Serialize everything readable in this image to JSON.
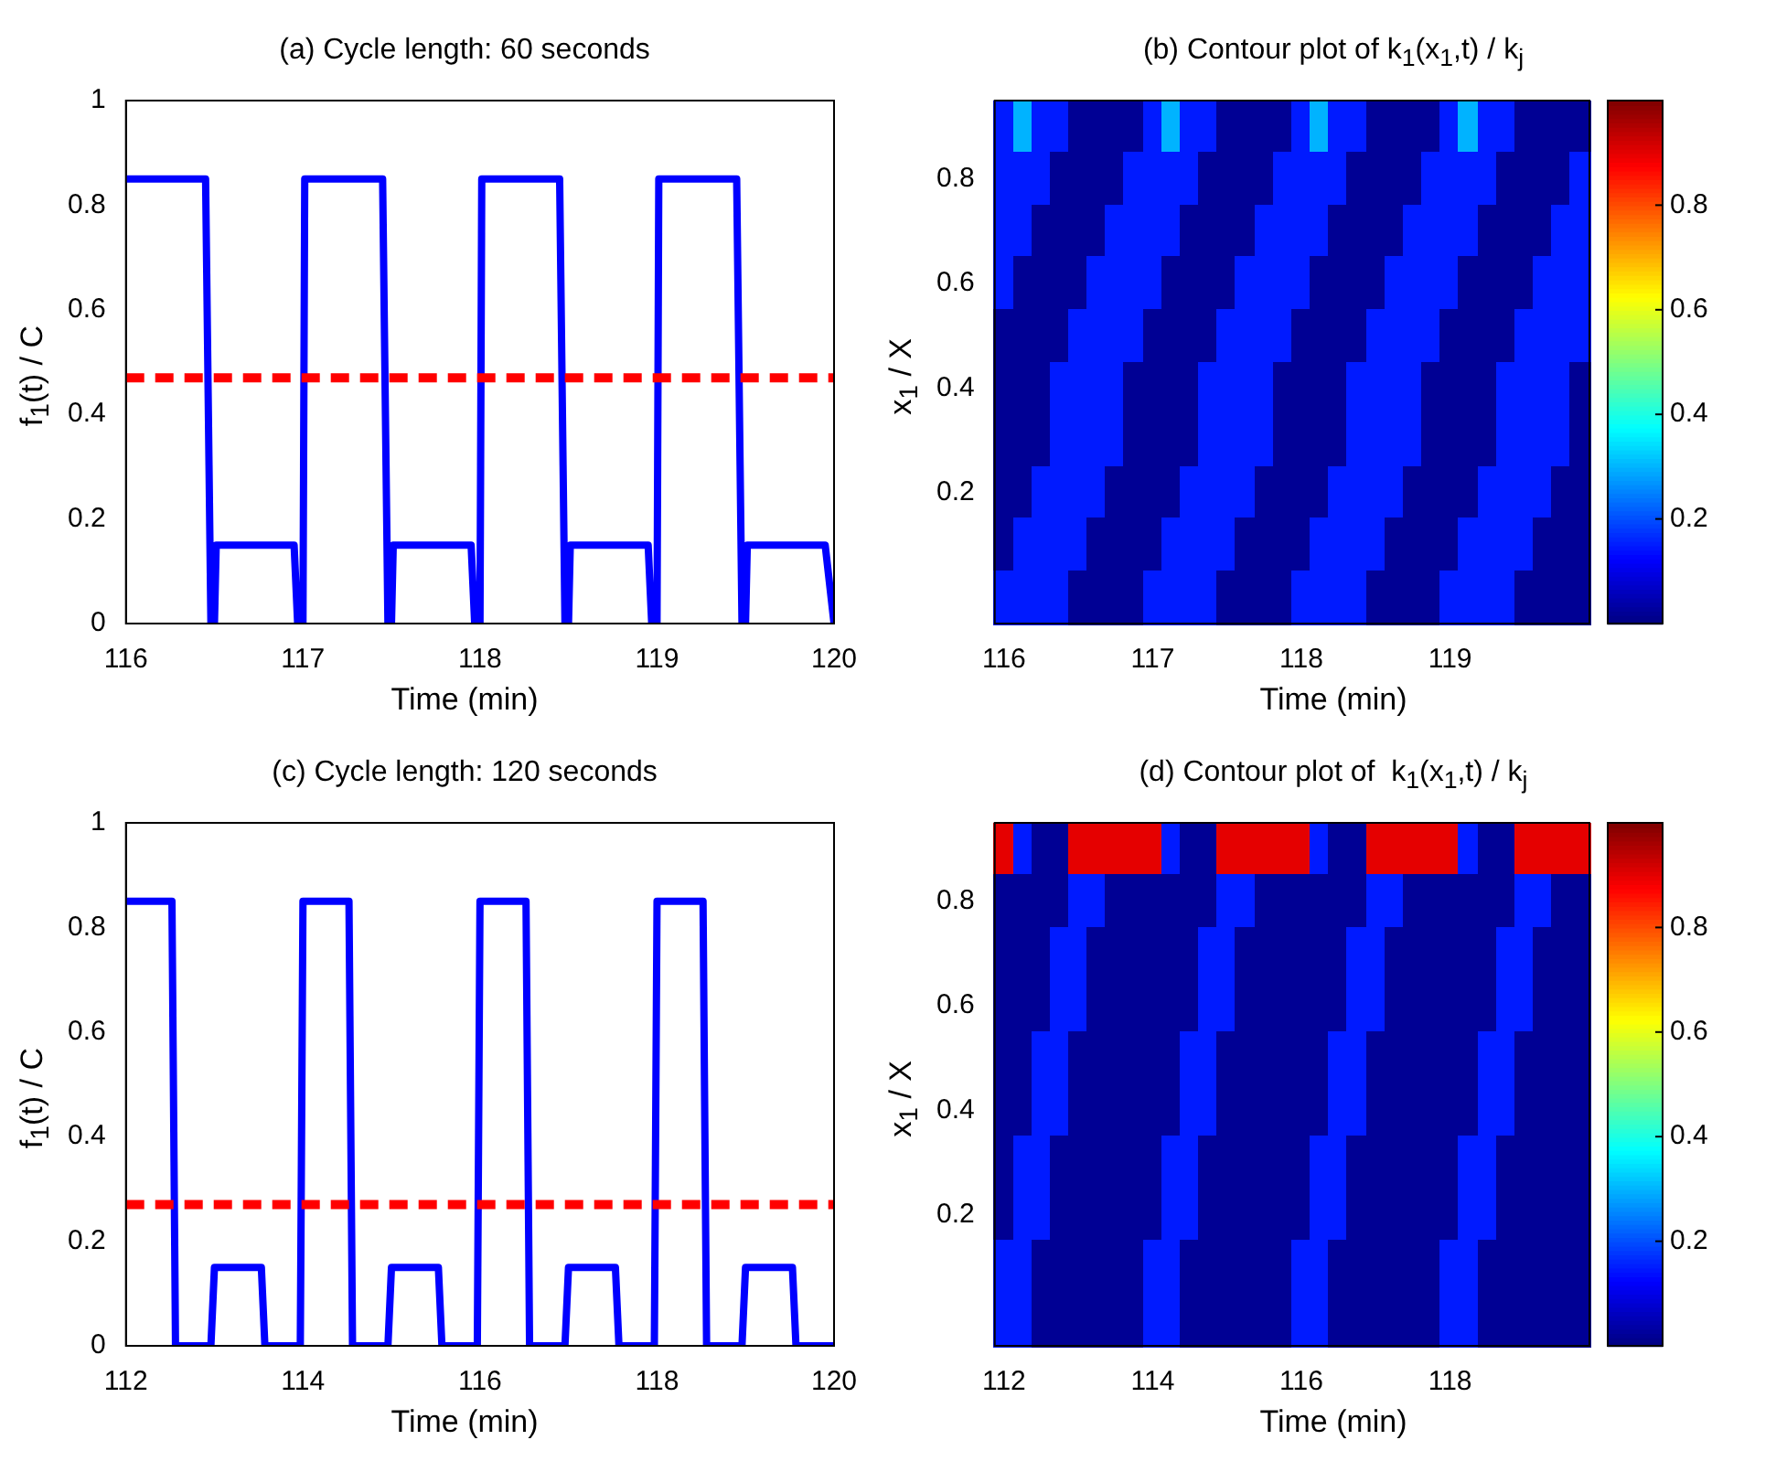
{
  "chart_data": [
    {
      "type": "line",
      "title": "(a) Cycle length: 60 seconds",
      "xlabel": "Time (min)",
      "ylabel": "f$_{1}$(t) / C",
      "color": "#0000ff",
      "line_style": "solid",
      "x": [
        116,
        116.45,
        116.48,
        116.5,
        116.51,
        116.95,
        116.97,
        117.0,
        117.01,
        117.45,
        117.48,
        117.5,
        117.51,
        117.95,
        117.97,
        118.0,
        118.01,
        118.45,
        118.48,
        118.5,
        118.51,
        118.95,
        118.97,
        119.0,
        119.01,
        119.45,
        119.48,
        119.5,
        119.51,
        119.95,
        120
      ],
      "values": [
        0.85,
        0.85,
        0,
        0,
        0.15,
        0.15,
        0,
        0,
        0.85,
        0.85,
        0,
        0,
        0.15,
        0.15,
        0,
        0,
        0.85,
        0.85,
        0,
        0,
        0.15,
        0.15,
        0,
        0,
        0.85,
        0.85,
        0,
        0,
        0.15,
        0.15,
        0
      ],
      "xlim": [
        116,
        120
      ],
      "xticks": [
        116,
        117,
        118,
        119,
        120
      ],
      "ylim": [
        0,
        1
      ],
      "yticks": [
        0,
        0.2,
        0.4,
        0.6,
        0.8,
        1
      ],
      "ref_lines": [
        {
          "axis": "y",
          "value": 0.47,
          "color": "#ff0000",
          "line_style": "dashed"
        }
      ]
    },
    {
      "type": "heatmap",
      "title": "(b) Contour plot of k$_{1}$(x$_{1}$,t) / k$_{j}$",
      "xlabel": "Time (min)",
      "ylabel": "x$_{1}$ / X",
      "categories": [
        "116",
        null,
        null,
        null,
        null,
        null,
        null,
        null,
        "117",
        null,
        null,
        null,
        null,
        null,
        null,
        null,
        "118",
        null,
        null,
        null,
        null,
        null,
        null,
        null,
        "119",
        null,
        null,
        null,
        null,
        null,
        null,
        null
      ],
      "y_categories": [
        null,
        "0.8",
        null,
        "0.6",
        null,
        "0.4",
        null,
        "0.2",
        null,
        null
      ],
      "cells": [
        [
          0.15,
          0.3,
          0.15,
          0.15,
          0.02,
          0.02,
          0.02,
          0.02,
          0.15,
          0.3,
          0.15,
          0.15,
          0.02,
          0.02,
          0.02,
          0.02,
          0.15,
          0.3,
          0.15,
          0.15,
          0.02,
          0.02,
          0.02,
          0.02,
          0.15,
          0.3,
          0.15,
          0.15,
          0.02,
          0.02,
          0.02,
          0.02
        ],
        [
          0.15,
          0.15,
          0.15,
          0.02,
          0.02,
          0.02,
          0.02,
          0.15,
          0.15,
          0.15,
          0.15,
          0.02,
          0.02,
          0.02,
          0.02,
          0.15,
          0.15,
          0.15,
          0.15,
          0.02,
          0.02,
          0.02,
          0.02,
          0.15,
          0.15,
          0.15,
          0.15,
          0.02,
          0.02,
          0.02,
          0.02,
          0.15
        ],
        [
          0.15,
          0.15,
          0.02,
          0.02,
          0.02,
          0.02,
          0.15,
          0.15,
          0.15,
          0.15,
          0.02,
          0.02,
          0.02,
          0.02,
          0.15,
          0.15,
          0.15,
          0.15,
          0.02,
          0.02,
          0.02,
          0.02,
          0.15,
          0.15,
          0.15,
          0.15,
          0.02,
          0.02,
          0.02,
          0.02,
          0.15,
          0.15
        ],
        [
          0.15,
          0.02,
          0.02,
          0.02,
          0.02,
          0.15,
          0.15,
          0.15,
          0.15,
          0.02,
          0.02,
          0.02,
          0.02,
          0.15,
          0.15,
          0.15,
          0.15,
          0.02,
          0.02,
          0.02,
          0.02,
          0.15,
          0.15,
          0.15,
          0.15,
          0.02,
          0.02,
          0.02,
          0.02,
          0.15,
          0.15,
          0.15
        ],
        [
          0.02,
          0.02,
          0.02,
          0.02,
          0.15,
          0.15,
          0.15,
          0.15,
          0.02,
          0.02,
          0.02,
          0.02,
          0.15,
          0.15,
          0.15,
          0.15,
          0.02,
          0.02,
          0.02,
          0.02,
          0.15,
          0.15,
          0.15,
          0.15,
          0.02,
          0.02,
          0.02,
          0.02,
          0.15,
          0.15,
          0.15,
          0.15
        ],
        [
          0.02,
          0.02,
          0.02,
          0.15,
          0.15,
          0.15,
          0.15,
          0.02,
          0.02,
          0.02,
          0.02,
          0.15,
          0.15,
          0.15,
          0.15,
          0.02,
          0.02,
          0.02,
          0.02,
          0.15,
          0.15,
          0.15,
          0.15,
          0.02,
          0.02,
          0.02,
          0.02,
          0.15,
          0.15,
          0.15,
          0.15,
          0.02
        ],
        [
          0.02,
          0.02,
          0.02,
          0.15,
          0.15,
          0.15,
          0.15,
          0.02,
          0.02,
          0.02,
          0.02,
          0.15,
          0.15,
          0.15,
          0.15,
          0.02,
          0.02,
          0.02,
          0.02,
          0.15,
          0.15,
          0.15,
          0.15,
          0.02,
          0.02,
          0.02,
          0.02,
          0.15,
          0.15,
          0.15,
          0.15,
          0.02
        ],
        [
          0.02,
          0.02,
          0.15,
          0.15,
          0.15,
          0.15,
          0.02,
          0.02,
          0.02,
          0.02,
          0.15,
          0.15,
          0.15,
          0.15,
          0.02,
          0.02,
          0.02,
          0.02,
          0.15,
          0.15,
          0.15,
          0.15,
          0.02,
          0.02,
          0.02,
          0.02,
          0.15,
          0.15,
          0.15,
          0.15,
          0.02,
          0.02
        ],
        [
          0.02,
          0.15,
          0.15,
          0.15,
          0.15,
          0.02,
          0.02,
          0.02,
          0.02,
          0.15,
          0.15,
          0.15,
          0.15,
          0.02,
          0.02,
          0.02,
          0.02,
          0.15,
          0.15,
          0.15,
          0.15,
          0.02,
          0.02,
          0.02,
          0.02,
          0.15,
          0.15,
          0.15,
          0.15,
          0.02,
          0.02,
          0.02
        ],
        [
          0.15,
          0.15,
          0.15,
          0.15,
          0.02,
          0.02,
          0.02,
          0.02,
          0.15,
          0.15,
          0.15,
          0.15,
          0.02,
          0.02,
          0.02,
          0.02,
          0.15,
          0.15,
          0.15,
          0.15,
          0.02,
          0.02,
          0.02,
          0.02,
          0.15,
          0.15,
          0.15,
          0.15,
          0.02,
          0.02,
          0.02,
          0.02
        ]
      ],
      "clim": [
        0,
        1
      ],
      "cticks": [
        0.2,
        0.4,
        0.6,
        0.8
      ]
    },
    {
      "type": "line",
      "title": "(c) Cycle length: 120 seconds",
      "xlabel": "Time (min)",
      "ylabel": "f$_{1}$(t) / C",
      "color": "#0000ff",
      "line_style": "solid",
      "x": [
        112,
        112.52,
        112.56,
        112.96,
        113.0,
        113.53,
        113.57,
        113.97,
        114.0,
        114.52,
        114.56,
        114.96,
        115.0,
        115.53,
        115.57,
        115.97,
        116.0,
        116.52,
        116.56,
        116.96,
        117.0,
        117.53,
        117.57,
        117.97,
        118.0,
        118.52,
        118.56,
        118.96,
        119.0,
        119.53,
        119.57,
        120
      ],
      "values": [
        0.85,
        0.85,
        0,
        0,
        0.15,
        0.15,
        0,
        0,
        0.85,
        0.85,
        0,
        0,
        0.15,
        0.15,
        0,
        0,
        0.85,
        0.85,
        0,
        0,
        0.15,
        0.15,
        0,
        0,
        0.85,
        0.85,
        0,
        0,
        0.15,
        0.15,
        0,
        0
      ],
      "xlim": [
        112,
        120
      ],
      "xticks": [
        112,
        114,
        116,
        118,
        120
      ],
      "ylim": [
        0,
        1
      ],
      "yticks": [
        0,
        0.2,
        0.4,
        0.6,
        0.8,
        1
      ],
      "ref_lines": [
        {
          "axis": "y",
          "value": 0.27,
          "color": "#ff0000",
          "line_style": "dashed"
        }
      ]
    },
    {
      "type": "heatmap",
      "title": "(d) Contour plot of  k$_{1}$(x$_{1}$,t) / k$_{j}$",
      "xlabel": "Time (min)",
      "ylabel": "x$_{1}$ / X",
      "categories": [
        "112",
        null,
        null,
        null,
        null,
        null,
        null,
        null,
        "114",
        null,
        null,
        null,
        null,
        null,
        null,
        null,
        "116",
        null,
        null,
        null,
        null,
        null,
        null,
        null,
        "118",
        null,
        null,
        null,
        null,
        null,
        null,
        null
      ],
      "y_categories": [
        null,
        "0.8",
        null,
        "0.6",
        null,
        "0.4",
        null,
        "0.2",
        null,
        null
      ],
      "cells": [
        [
          0.9,
          0.15,
          0.02,
          0.02,
          0.9,
          0.9,
          0.9,
          0.9,
          0.9,
          0.15,
          0.02,
          0.02,
          0.9,
          0.9,
          0.9,
          0.9,
          0.9,
          0.15,
          0.02,
          0.02,
          0.9,
          0.9,
          0.9,
          0.9,
          0.9,
          0.15,
          0.02,
          0.02,
          0.9,
          0.9,
          0.9,
          0.9
        ],
        [
          0.02,
          0.02,
          0.02,
          0.02,
          0.15,
          0.15,
          0.02,
          0.02,
          0.02,
          0.02,
          0.02,
          0.02,
          0.15,
          0.15,
          0.02,
          0.02,
          0.02,
          0.02,
          0.02,
          0.02,
          0.15,
          0.15,
          0.02,
          0.02,
          0.02,
          0.02,
          0.02,
          0.02,
          0.15,
          0.15,
          0.02,
          0.02
        ],
        [
          0.02,
          0.02,
          0.02,
          0.15,
          0.15,
          0.02,
          0.02,
          0.02,
          0.02,
          0.02,
          0.02,
          0.15,
          0.15,
          0.02,
          0.02,
          0.02,
          0.02,
          0.02,
          0.02,
          0.15,
          0.15,
          0.02,
          0.02,
          0.02,
          0.02,
          0.02,
          0.02,
          0.15,
          0.15,
          0.02,
          0.02,
          0.02
        ],
        [
          0.02,
          0.02,
          0.02,
          0.15,
          0.15,
          0.02,
          0.02,
          0.02,
          0.02,
          0.02,
          0.02,
          0.15,
          0.15,
          0.02,
          0.02,
          0.02,
          0.02,
          0.02,
          0.02,
          0.15,
          0.15,
          0.02,
          0.02,
          0.02,
          0.02,
          0.02,
          0.02,
          0.15,
          0.15,
          0.02,
          0.02,
          0.02
        ],
        [
          0.02,
          0.02,
          0.15,
          0.15,
          0.02,
          0.02,
          0.02,
          0.02,
          0.02,
          0.02,
          0.15,
          0.15,
          0.02,
          0.02,
          0.02,
          0.02,
          0.02,
          0.02,
          0.15,
          0.15,
          0.02,
          0.02,
          0.02,
          0.02,
          0.02,
          0.02,
          0.15,
          0.15,
          0.02,
          0.02,
          0.02,
          0.02
        ],
        [
          0.02,
          0.02,
          0.15,
          0.15,
          0.02,
          0.02,
          0.02,
          0.02,
          0.02,
          0.02,
          0.15,
          0.15,
          0.02,
          0.02,
          0.02,
          0.02,
          0.02,
          0.02,
          0.15,
          0.15,
          0.02,
          0.02,
          0.02,
          0.02,
          0.02,
          0.02,
          0.15,
          0.15,
          0.02,
          0.02,
          0.02,
          0.02
        ],
        [
          0.02,
          0.15,
          0.15,
          0.02,
          0.02,
          0.02,
          0.02,
          0.02,
          0.02,
          0.15,
          0.15,
          0.02,
          0.02,
          0.02,
          0.02,
          0.02,
          0.02,
          0.15,
          0.15,
          0.02,
          0.02,
          0.02,
          0.02,
          0.02,
          0.02,
          0.15,
          0.15,
          0.02,
          0.02,
          0.02,
          0.02,
          0.02
        ],
        [
          0.02,
          0.15,
          0.15,
          0.02,
          0.02,
          0.02,
          0.02,
          0.02,
          0.02,
          0.15,
          0.15,
          0.02,
          0.02,
          0.02,
          0.02,
          0.02,
          0.02,
          0.15,
          0.15,
          0.02,
          0.02,
          0.02,
          0.02,
          0.02,
          0.02,
          0.15,
          0.15,
          0.02,
          0.02,
          0.02,
          0.02,
          0.02
        ],
        [
          0.15,
          0.15,
          0.02,
          0.02,
          0.02,
          0.02,
          0.02,
          0.02,
          0.15,
          0.15,
          0.02,
          0.02,
          0.02,
          0.02,
          0.02,
          0.02,
          0.15,
          0.15,
          0.02,
          0.02,
          0.02,
          0.02,
          0.02,
          0.02,
          0.15,
          0.15,
          0.02,
          0.02,
          0.02,
          0.02,
          0.02,
          0.02
        ],
        [
          0.15,
          0.15,
          0.02,
          0.02,
          0.02,
          0.02,
          0.02,
          0.02,
          0.15,
          0.15,
          0.02,
          0.02,
          0.02,
          0.02,
          0.02,
          0.02,
          0.15,
          0.15,
          0.02,
          0.02,
          0.02,
          0.02,
          0.02,
          0.02,
          0.15,
          0.15,
          0.02,
          0.02,
          0.02,
          0.02,
          0.02,
          0.02
        ]
      ],
      "clim": [
        0,
        1
      ],
      "cticks": [
        0.2,
        0.4,
        0.6,
        0.8
      ]
    }
  ]
}
